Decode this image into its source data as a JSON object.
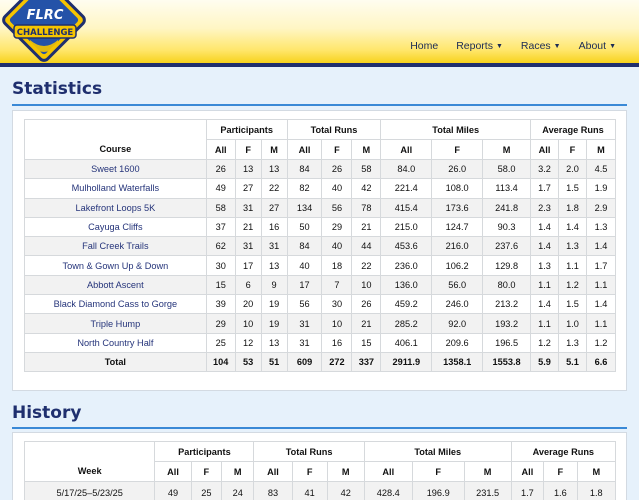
{
  "logo": {
    "line1": "FLRC",
    "line2": "CHALLENGE"
  },
  "nav": {
    "home": "Home",
    "reports": "Reports",
    "races": "Races",
    "about": "About"
  },
  "statistics": {
    "title": "Statistics",
    "headers": {
      "course": "Course",
      "participants": "Participants",
      "total_runs": "Total Runs",
      "total_miles": "Total Miles",
      "average_runs": "Average Runs",
      "all": "All",
      "f": "F",
      "m": "M"
    },
    "rows": [
      [
        "Sweet 1600",
        "26",
        "13",
        "13",
        "84",
        "26",
        "58",
        "84.0",
        "26.0",
        "58.0",
        "3.2",
        "2.0",
        "4.5"
      ],
      [
        "Mulholland Waterfalls",
        "49",
        "27",
        "22",
        "82",
        "40",
        "42",
        "221.4",
        "108.0",
        "113.4",
        "1.7",
        "1.5",
        "1.9"
      ],
      [
        "Lakefront Loops 5K",
        "58",
        "31",
        "27",
        "134",
        "56",
        "78",
        "415.4",
        "173.6",
        "241.8",
        "2.3",
        "1.8",
        "2.9"
      ],
      [
        "Cayuga Cliffs",
        "37",
        "21",
        "16",
        "50",
        "29",
        "21",
        "215.0",
        "124.7",
        "90.3",
        "1.4",
        "1.4",
        "1.3"
      ],
      [
        "Fall Creek Trails",
        "62",
        "31",
        "31",
        "84",
        "40",
        "44",
        "453.6",
        "216.0",
        "237.6",
        "1.4",
        "1.3",
        "1.4"
      ],
      [
        "Town & Gown Up & Down",
        "30",
        "17",
        "13",
        "40",
        "18",
        "22",
        "236.0",
        "106.2",
        "129.8",
        "1.3",
        "1.1",
        "1.7"
      ],
      [
        "Abbott Ascent",
        "15",
        "6",
        "9",
        "17",
        "7",
        "10",
        "136.0",
        "56.0",
        "80.0",
        "1.1",
        "1.2",
        "1.1"
      ],
      [
        "Black Diamond Cass to Gorge",
        "39",
        "20",
        "19",
        "56",
        "30",
        "26",
        "459.2",
        "246.0",
        "213.2",
        "1.4",
        "1.5",
        "1.4"
      ],
      [
        "Triple Hump",
        "29",
        "10",
        "19",
        "31",
        "10",
        "21",
        "285.2",
        "92.0",
        "193.2",
        "1.1",
        "1.0",
        "1.1"
      ],
      [
        "North Country Half",
        "25",
        "12",
        "13",
        "31",
        "16",
        "15",
        "406.1",
        "209.6",
        "196.5",
        "1.2",
        "1.3",
        "1.2"
      ]
    ],
    "total": [
      "Total",
      "104",
      "53",
      "51",
      "609",
      "272",
      "337",
      "2911.9",
      "1358.1",
      "1553.8",
      "5.9",
      "5.1",
      "6.6"
    ]
  },
  "history": {
    "title": "History",
    "headers": {
      "week": "Week",
      "participants": "Participants",
      "total_runs": "Total Runs",
      "total_miles": "Total Miles",
      "average_runs": "Average Runs",
      "all": "All",
      "f": "F",
      "m": "M"
    },
    "rows": [
      [
        "5/17/25–5/23/25",
        "49",
        "25",
        "24",
        "83",
        "41",
        "42",
        "428.4",
        "196.9",
        "231.5",
        "1.7",
        "1.6",
        "1.8"
      ]
    ]
  },
  "colors": {
    "navy": "#1f2f6e",
    "link": "#25347a",
    "accent_rule": "#3a89d6",
    "gold": "#f7d21c",
    "page_bg": "#e6f1fb"
  }
}
